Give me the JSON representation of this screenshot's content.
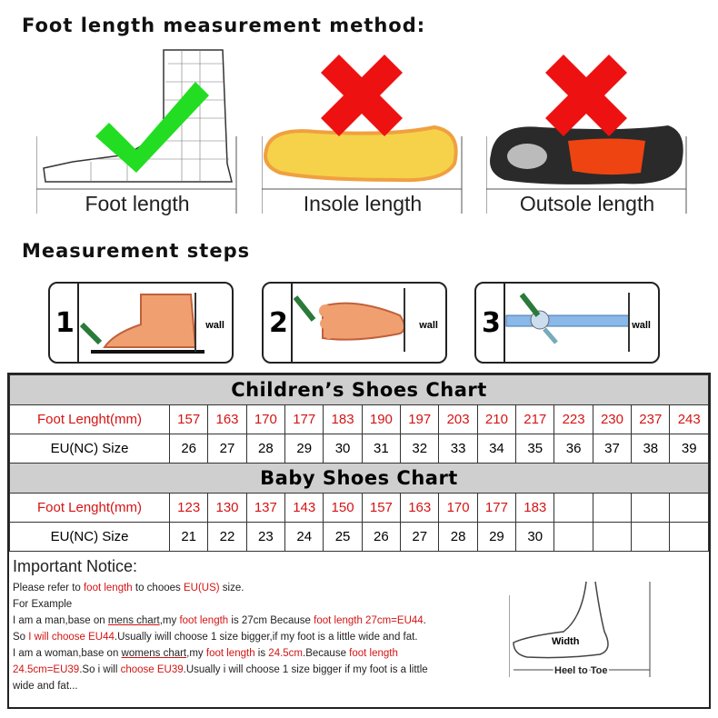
{
  "title": "Foot length measurement method:",
  "methods": [
    {
      "label": "Foot length",
      "mark": "check-icon",
      "color": "#22dd22"
    },
    {
      "label": "Insole length",
      "mark": "x-icon",
      "color": "#ee1111"
    },
    {
      "label": "Outsole length",
      "mark": "x-icon",
      "color": "#ee1111"
    }
  ],
  "steps_title": "Measurement steps",
  "steps": [
    {
      "num": "1",
      "wall": "wall"
    },
    {
      "num": "2",
      "wall": "wall"
    },
    {
      "num": "3",
      "wall": "wall"
    }
  ],
  "children_chart": {
    "title": "Children’s Shoes Chart",
    "row1_label": "Foot Lenght(mm)",
    "row2_label": "EU(NC) Size",
    "foot_length": [
      "157",
      "163",
      "170",
      "177",
      "183",
      "190",
      "197",
      "203",
      "210",
      "217",
      "223",
      "230",
      "237",
      "243"
    ],
    "eu_size": [
      "26",
      "27",
      "28",
      "29",
      "30",
      "31",
      "32",
      "33",
      "34",
      "35",
      "36",
      "37",
      "38",
      "39"
    ]
  },
  "baby_chart": {
    "title": "Baby Shoes Chart",
    "row1_label": "Foot Lenght(mm)",
    "row2_label": "EU(NC) Size",
    "foot_length": [
      "123",
      "130",
      "137",
      "143",
      "150",
      "157",
      "163",
      "170",
      "177",
      "183",
      "",
      "",
      "",
      ""
    ],
    "eu_size": [
      "21",
      "22",
      "23",
      "24",
      "25",
      "26",
      "27",
      "28",
      "29",
      "30",
      "",
      "",
      "",
      ""
    ]
  },
  "notice": {
    "title": "Important Notice:",
    "l1": [
      "Please refer to ",
      "foot length",
      " to chooes ",
      "EU(US)",
      " size."
    ],
    "l2": "For Example",
    "l3": [
      "I am a man,base on ",
      "mens chart",
      ",my ",
      "foot length",
      " is 27cm Because ",
      "foot length 27cm=EU44",
      "."
    ],
    "l4": [
      "So ",
      "I will choose EU44",
      ".Usually iwill choose 1 size bigger,if my foot is a little wide and fat."
    ],
    "l5": [
      "I am a woman,base on ",
      "womens chart",
      ",my ",
      "foot length",
      " is ",
      "24.5cm",
      ".Because ",
      "foot length"
    ],
    "l6": [
      "24.5cm=EU39",
      ".So i will ",
      "choose EU39",
      ".Usually i will choose 1 size bigger if my foot is a little"
    ],
    "l7": "wide and fat...",
    "width_label": "Width",
    "heel_label": "Heel to Toe"
  }
}
